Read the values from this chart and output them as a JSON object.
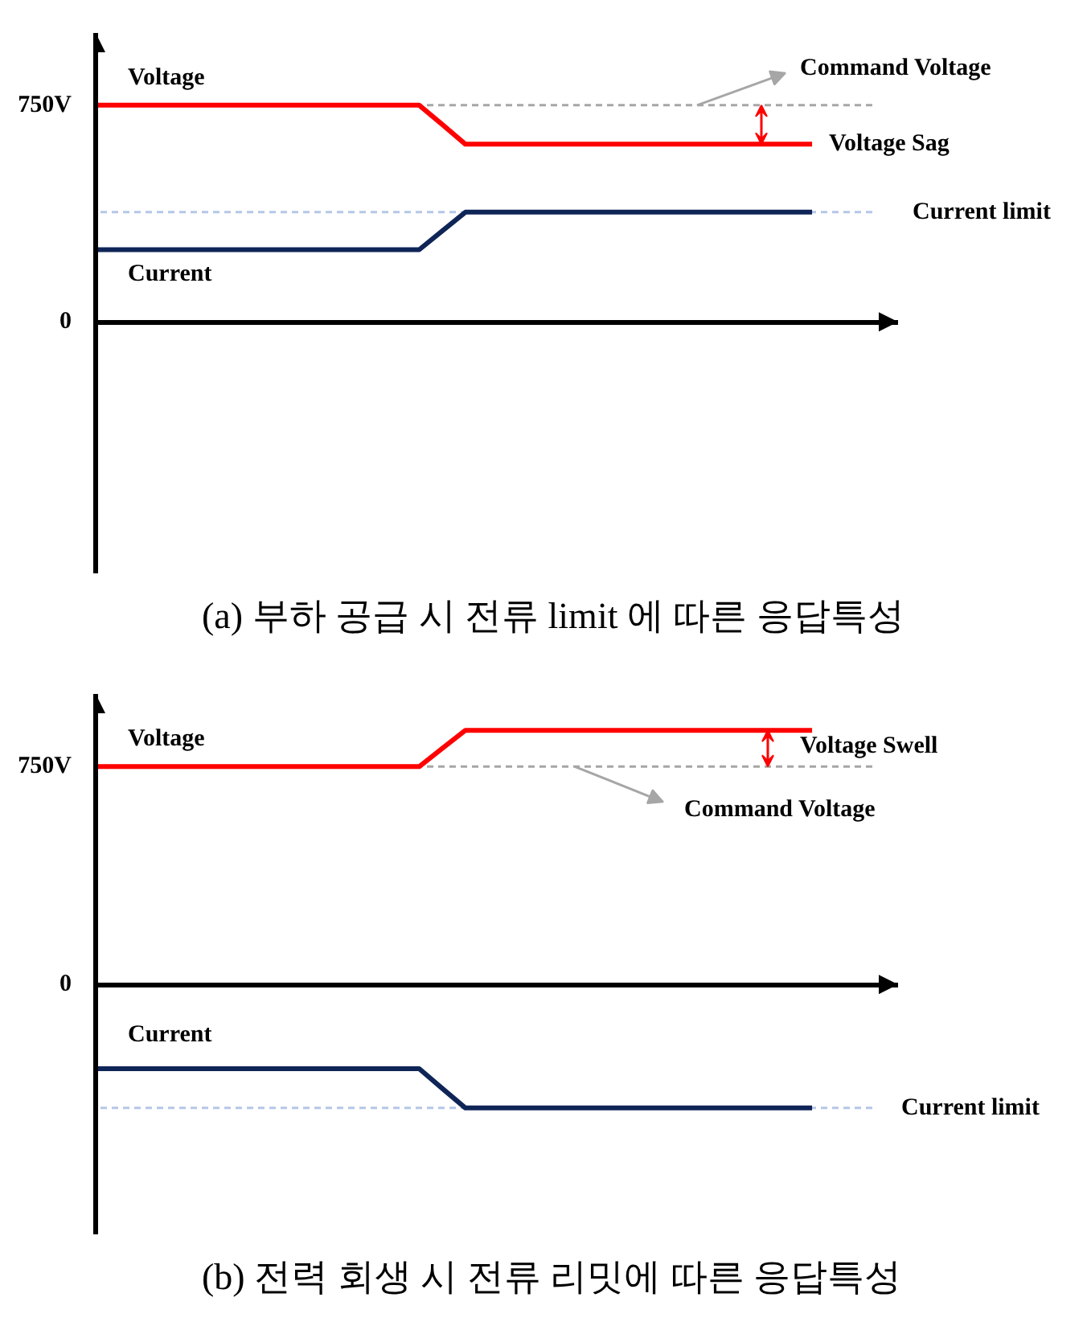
{
  "chart_data": [
    {
      "type": "line",
      "title": "(a) 부하 공급 시 전류 limit 에 따른 응답특성",
      "tick_labels": "y",
      "categories": [
        null,
        null,
        null,
        null,
        null,
        null,
        null,
        null,
        null,
        null,
        null,
        null,
        null,
        null,
        null,
        null,
        null,
        null,
        null,
        null,
        null,
        null,
        null,
        null,
        null,
        null,
        null,
        null,
        null,
        null,
        null,
        null
      ],
      "ylim": [
        -870,
        1000
      ],
      "yticks": [
        0,
        {
          "value": 750,
          "label": "750V"
        }
      ],
      "series": [
        {
          "name": "Voltage",
          "color": "#ff0000",
          "values": [
            750,
            750,
            750,
            750,
            750,
            750,
            750,
            750,
            750,
            750,
            750,
            750,
            750,
            750,
            750,
            683,
            615,
            615,
            615,
            615,
            615,
            615,
            615,
            615,
            615,
            615,
            615,
            615,
            615,
            615,
            615,
            615
          ]
        },
        {
          "name": "Current",
          "color": "#0f2557",
          "values": [
            250,
            250,
            250,
            250,
            250,
            250,
            250,
            250,
            250,
            250,
            250,
            250,
            250,
            250,
            250,
            315,
            380,
            380,
            380,
            380,
            380,
            380,
            380,
            380,
            380,
            380,
            380,
            380,
            380,
            380,
            380,
            380
          ]
        }
      ],
      "ref_lines": [
        {
          "axis": "y",
          "value": 750,
          "label": "Command Voltage",
          "color": "#a6a6a6",
          "line_style": "dashed"
        },
        {
          "axis": "y",
          "value": 380,
          "label": "Current limit",
          "color": "#b4c7e7",
          "line_style": "dashed"
        }
      ],
      "annotations": [
        "Voltage Sag"
      ]
    },
    {
      "type": "line",
      "title": "(b) 전력 회생 시 전류 리밋에 따른 응답특성",
      "tick_labels": "y",
      "categories": [
        null,
        null,
        null,
        null,
        null,
        null,
        null,
        null,
        null,
        null,
        null,
        null,
        null,
        null,
        null,
        null,
        null,
        null,
        null,
        null,
        null,
        null,
        null,
        null,
        null,
        null,
        null,
        null,
        null,
        null,
        null,
        null
      ],
      "ylim": [
        -860,
        1000
      ],
      "yticks": [
        0,
        {
          "value": 750,
          "label": "750V"
        }
      ],
      "series": [
        {
          "name": "Voltage",
          "color": "#ff0000",
          "values": [
            750,
            750,
            750,
            750,
            750,
            750,
            750,
            750,
            750,
            750,
            750,
            750,
            750,
            750,
            750,
            813,
            875,
            875,
            875,
            875,
            875,
            875,
            875,
            875,
            875,
            875,
            875,
            875,
            875,
            875,
            875,
            875
          ]
        },
        {
          "name": "Current",
          "color": "#0f2557",
          "values": [
            -290,
            -290,
            -290,
            -290,
            -290,
            -290,
            -290,
            -290,
            -290,
            -290,
            -290,
            -290,
            -290,
            -290,
            -290,
            -358,
            -425,
            -425,
            -425,
            -425,
            -425,
            -425,
            -425,
            -425,
            -425,
            -425,
            -425,
            -425,
            -425,
            -425,
            -425,
            -425
          ]
        }
      ],
      "ref_lines": [
        {
          "axis": "y",
          "value": 750,
          "label": "Command Voltage",
          "color": "#a6a6a6",
          "line_style": "dashed"
        },
        {
          "axis": "y",
          "value": -425,
          "label": "Current limit",
          "color": "#b4c7e7",
          "line_style": "dashed"
        }
      ],
      "annotations": [
        "Voltage Swell"
      ]
    }
  ]
}
